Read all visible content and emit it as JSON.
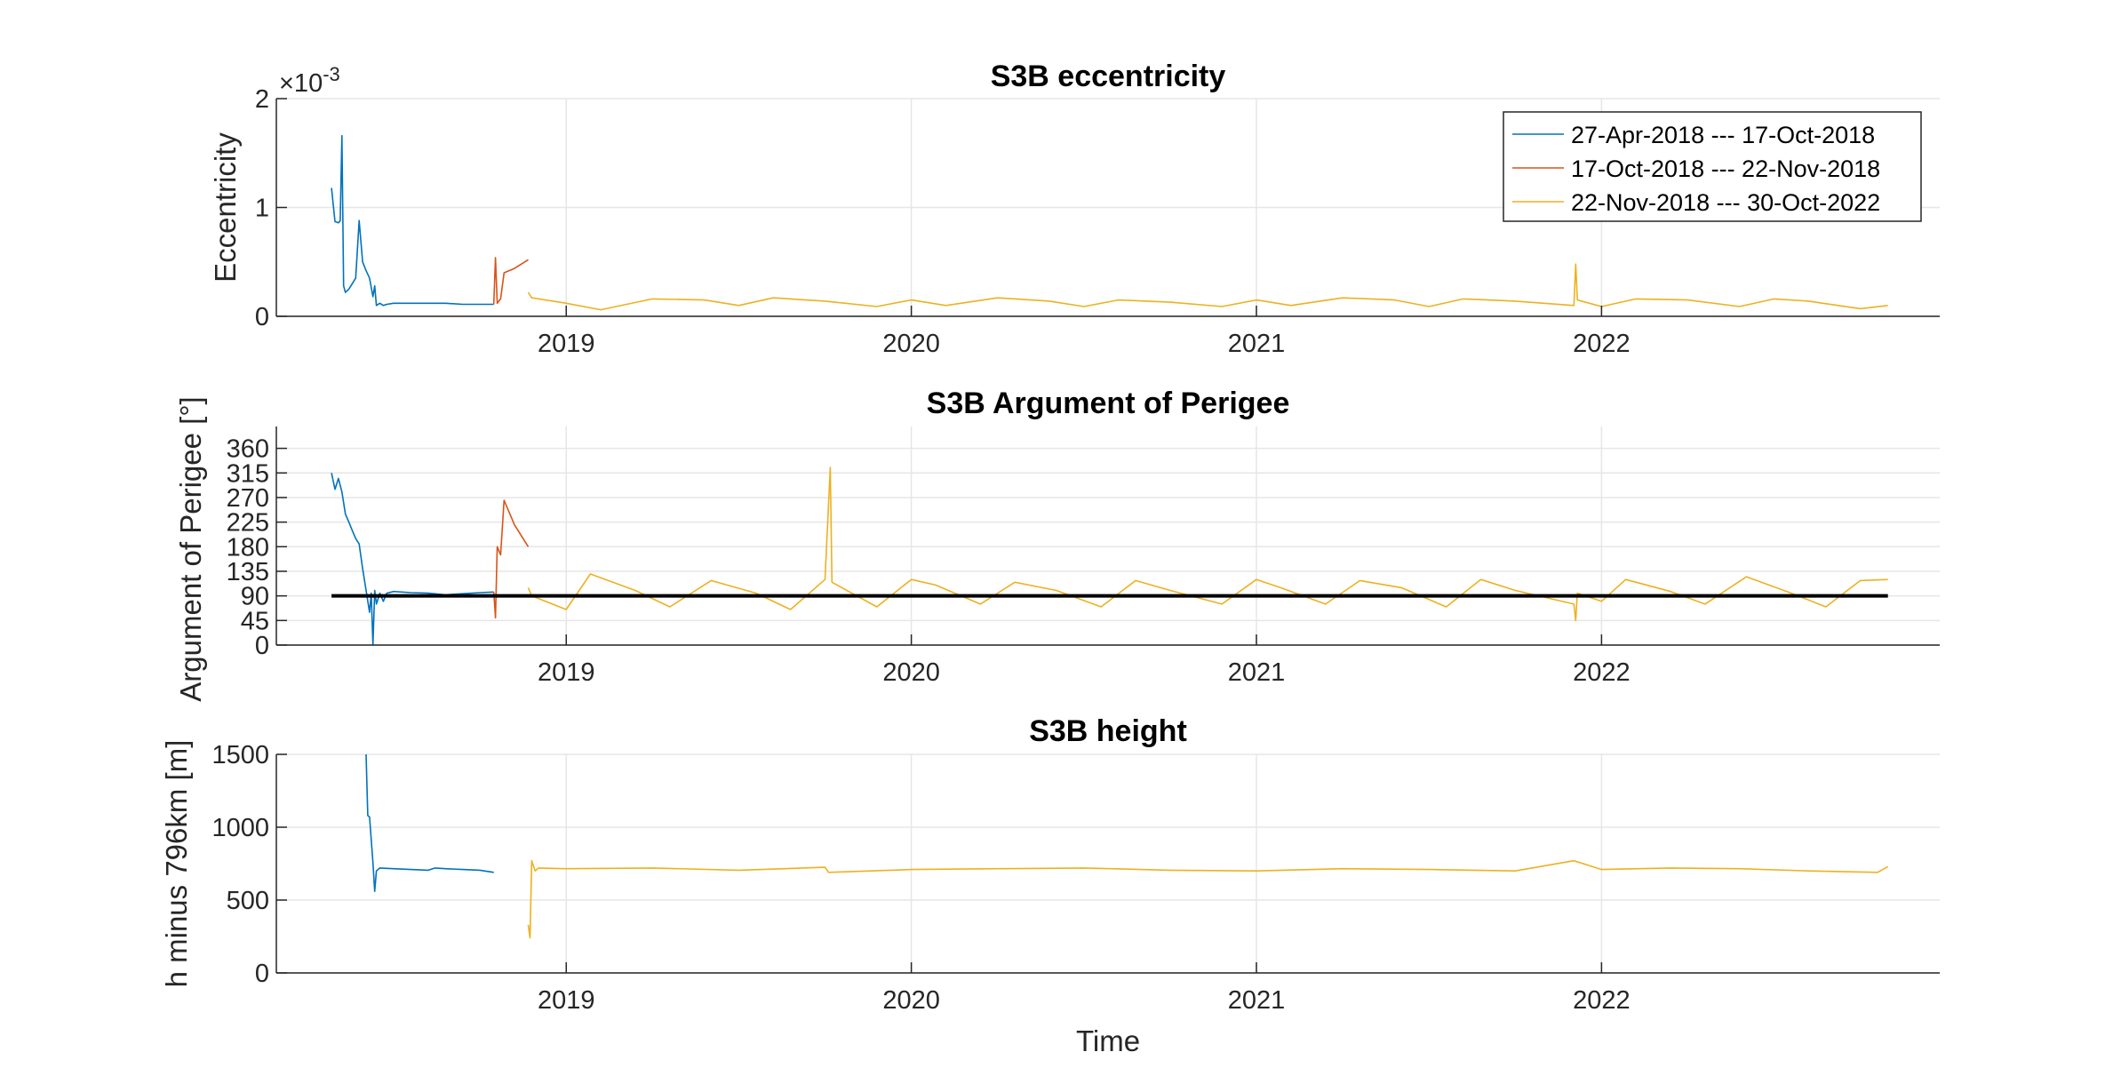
{
  "chart_data": [
    {
      "type": "line",
      "title": "S3B eccentricity",
      "ylabel": "Eccentricity",
      "xlabel": "",
      "exponent_base": "×10",
      "exponent_power": "-3",
      "ylim": [
        0,
        2
      ],
      "yticks": [
        "0",
        "1",
        "2"
      ],
      "xticks": [
        "2019",
        "2020",
        "2021",
        "2022"
      ],
      "grid": true,
      "legend_placement": "top-right",
      "series": [
        {
          "name": "27-Apr-2018 --- 17-Oct-2018",
          "color": "#0072BD",
          "x": [
            2018.32,
            2018.33,
            2018.34,
            2018.345,
            2018.35,
            2018.355,
            2018.36,
            2018.37,
            2018.38,
            2018.39,
            2018.4,
            2018.41,
            2018.42,
            2018.43,
            2018.44,
            2018.445,
            2018.45,
            2018.46,
            2018.47,
            2018.48,
            2018.5,
            2018.55,
            2018.6,
            2018.65,
            2018.7,
            2018.75,
            2018.79
          ],
          "y": [
            1.18,
            0.87,
            0.86,
            0.88,
            1.66,
            0.28,
            0.22,
            0.25,
            0.3,
            0.35,
            0.88,
            0.5,
            0.42,
            0.35,
            0.18,
            0.28,
            0.1,
            0.12,
            0.1,
            0.11,
            0.12,
            0.12,
            0.12,
            0.12,
            0.11,
            0.11,
            0.11
          ]
        },
        {
          "name": "17-Oct-2018 --- 22-Nov-2018",
          "color": "#D95319",
          "x": [
            2018.79,
            2018.795,
            2018.8,
            2018.81,
            2018.82,
            2018.85,
            2018.89
          ],
          "y": [
            0.11,
            0.54,
            0.12,
            0.16,
            0.4,
            0.44,
            0.52
          ]
        },
        {
          "name": "22-Nov-2018 --- 30-Oct-2022",
          "color": "#EDB120",
          "x": [
            2018.89,
            2018.9,
            2019.0,
            2019.1,
            2019.25,
            2019.4,
            2019.5,
            2019.6,
            2019.75,
            2019.9,
            2020.0,
            2020.1,
            2020.25,
            2020.4,
            2020.5,
            2020.6,
            2020.75,
            2020.9,
            2021.0,
            2021.1,
            2021.25,
            2021.4,
            2021.5,
            2021.6,
            2021.75,
            2021.92,
            2021.925,
            2021.93,
            2022.0,
            2022.1,
            2022.25,
            2022.4,
            2022.5,
            2022.6,
            2022.75,
            2022.83
          ],
          "y": [
            0.22,
            0.17,
            0.12,
            0.06,
            0.16,
            0.15,
            0.1,
            0.17,
            0.14,
            0.09,
            0.15,
            0.1,
            0.17,
            0.14,
            0.09,
            0.15,
            0.13,
            0.09,
            0.15,
            0.1,
            0.17,
            0.15,
            0.09,
            0.16,
            0.14,
            0.1,
            0.48,
            0.15,
            0.09,
            0.16,
            0.15,
            0.09,
            0.16,
            0.14,
            0.07,
            0.1
          ]
        }
      ]
    },
    {
      "type": "line",
      "title": "S3B Argument of Perigee",
      "ylabel": "Argument of Perigee [°]",
      "xlabel": "",
      "ylim": [
        0,
        400
      ],
      "yticks": [
        "0",
        "45",
        "90",
        "135",
        "180",
        "225",
        "270",
        "315",
        "360"
      ],
      "xticks": [
        "2019",
        "2020",
        "2021",
        "2022"
      ],
      "grid": true,
      "series": [
        {
          "name": "27-Apr-2018 --- 17-Oct-2018",
          "color": "#0072BD",
          "x": [
            2018.32,
            2018.33,
            2018.34,
            2018.35,
            2018.36,
            2018.37,
            2018.38,
            2018.39,
            2018.4,
            2018.41,
            2018.42,
            2018.43,
            2018.435,
            2018.44,
            2018.445,
            2018.45,
            2018.46,
            2018.47,
            2018.48,
            2018.5,
            2018.55,
            2018.6,
            2018.65,
            2018.7,
            2018.75,
            2018.79
          ],
          "y": [
            315,
            285,
            305,
            280,
            240,
            225,
            210,
            195,
            185,
            140,
            100,
            60,
            95,
            0,
            100,
            75,
            95,
            80,
            95,
            98,
            96,
            95,
            92,
            94,
            96,
            97
          ]
        },
        {
          "name": "17-Oct-2018 --- 22-Nov-2018",
          "color": "#D95319",
          "x": [
            2018.79,
            2018.795,
            2018.8,
            2018.81,
            2018.82,
            2018.85,
            2018.89
          ],
          "y": [
            97,
            50,
            180,
            165,
            265,
            220,
            180
          ]
        },
        {
          "name": "22-Nov-2018 --- 30-Oct-2022",
          "color": "#EDB120",
          "x": [
            2018.89,
            2018.9,
            2019.0,
            2019.07,
            2019.2,
            2019.3,
            2019.42,
            2019.55,
            2019.65,
            2019.75,
            2019.765,
            2019.77,
            2019.9,
            2020.0,
            2020.07,
            2020.2,
            2020.3,
            2020.42,
            2020.55,
            2020.65,
            2020.75,
            2020.9,
            2021.0,
            2021.07,
            2021.2,
            2021.3,
            2021.42,
            2021.55,
            2021.65,
            2021.75,
            2021.92,
            2021.925,
            2021.93,
            2022.0,
            2022.07,
            2022.2,
            2022.3,
            2022.42,
            2022.55,
            2022.65,
            2022.75,
            2022.83
          ],
          "y": [
            105,
            90,
            65,
            130,
            100,
            70,
            118,
            95,
            65,
            120,
            325,
            115,
            70,
            120,
            110,
            75,
            115,
            100,
            70,
            118,
            100,
            75,
            120,
            105,
            75,
            118,
            105,
            70,
            120,
            100,
            75,
            45,
            95,
            80,
            120,
            98,
            75,
            125,
            95,
            70,
            118,
            120
          ]
        },
        {
          "name": "",
          "color": "#000000",
          "x": [
            2018.32,
            2022.83
          ],
          "y": [
            90,
            90
          ]
        }
      ]
    },
    {
      "type": "line",
      "title": "S3B height",
      "ylabel": "h minus 796km [m]",
      "xlabel": "Time",
      "ylim": [
        0,
        1500
      ],
      "yticks": [
        "0",
        "500",
        "1000",
        "1500"
      ],
      "xticks": [
        "2019",
        "2020",
        "2021",
        "2022"
      ],
      "grid": true,
      "series": [
        {
          "name": "27-Apr-2018 --- 17-Oct-2018",
          "color": "#0072BD",
          "x": [
            2018.42,
            2018.425,
            2018.43,
            2018.44,
            2018.445,
            2018.45,
            2018.46,
            2018.5,
            2018.55,
            2018.6,
            2018.62,
            2018.65,
            2018.7,
            2018.75,
            2018.79
          ],
          "y": [
            1500,
            1080,
            1070,
            760,
            560,
            700,
            720,
            715,
            710,
            705,
            720,
            715,
            710,
            705,
            690
          ]
        },
        {
          "name": "17-Oct-2018 --- 22-Nov-2018",
          "color": "#D95319",
          "x": [],
          "y": []
        },
        {
          "name": "22-Nov-2018 --- 30-Oct-2022",
          "color": "#EDB120",
          "x": [
            2018.89,
            2018.895,
            2018.9,
            2018.91,
            2018.92,
            2019.0,
            2019.25,
            2019.5,
            2019.75,
            2019.76,
            2020.0,
            2020.25,
            2020.5,
            2020.75,
            2021.0,
            2021.25,
            2021.5,
            2021.75,
            2021.92,
            2022.0,
            2022.2,
            2022.4,
            2022.6,
            2022.8,
            2022.83
          ],
          "y": [
            330,
            240,
            770,
            700,
            720,
            715,
            720,
            705,
            725,
            690,
            710,
            715,
            720,
            705,
            700,
            715,
            710,
            700,
            770,
            710,
            720,
            715,
            700,
            690,
            730
          ]
        }
      ]
    }
  ]
}
